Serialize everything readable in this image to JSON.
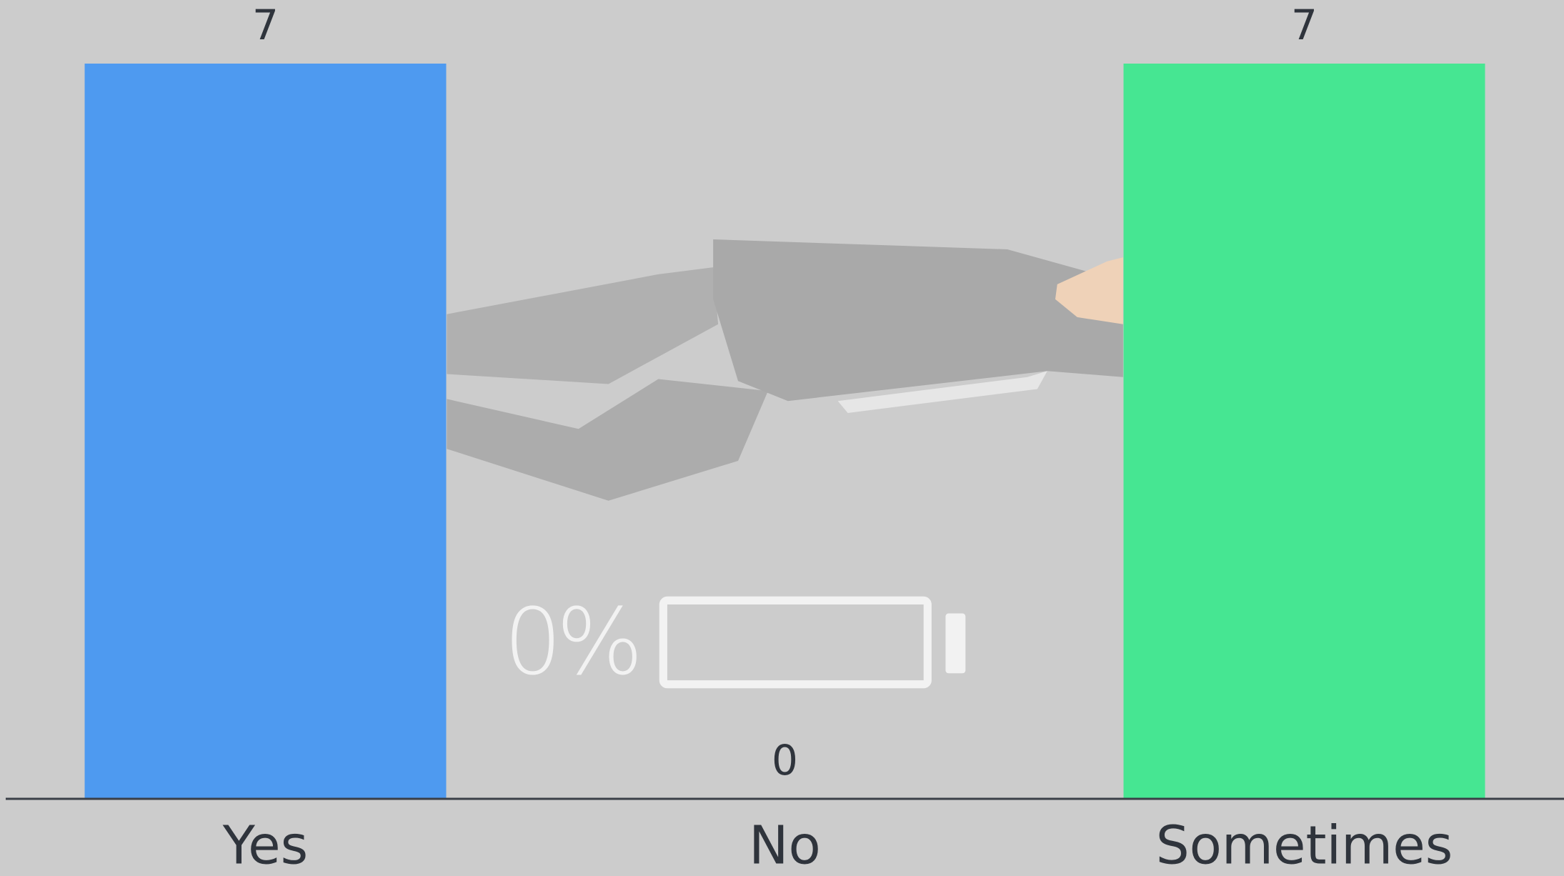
{
  "chart_data": {
    "type": "bar",
    "categories": [
      "Yes",
      "No",
      "Sometimes"
    ],
    "values": [
      7,
      0,
      7
    ],
    "colors": [
      "#4e9af0",
      null,
      "#46e692"
    ],
    "ylim": [
      0,
      7
    ],
    "annotation": "0%"
  }
}
